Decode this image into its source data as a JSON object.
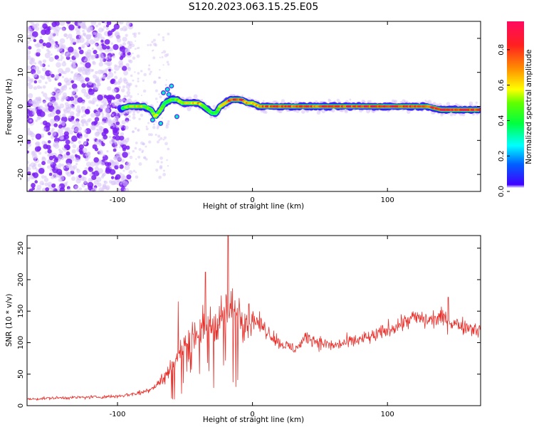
{
  "title": "S120.2023.063.15.25.E05",
  "colors": {
    "line": "#e8302b",
    "axis": "#000000",
    "background": "#ffffff",
    "scatter_low": "#d8c4f8",
    "scatter_high": "#7a1ff2"
  },
  "chart_data": [
    {
      "type": "heatmap",
      "title": "",
      "xlabel": "Height of straight line (km)",
      "ylabel": "Frequency (Hz)",
      "xlim": [
        -167,
        169
      ],
      "ylim": [
        -25,
        25
      ],
      "xticks": [
        "-100",
        "0",
        "100"
      ],
      "xtick_values": [
        -100,
        0,
        100
      ],
      "yticks": [
        "-20",
        "-10",
        "0",
        "10",
        "20"
      ],
      "ytick_values": [
        -20,
        -10,
        0,
        10,
        20
      ],
      "colorbar": {
        "label": "Normalized spectral amplitude",
        "ticks": [
          "0.0",
          "0.2",
          "0.4",
          "0.6",
          "0.8"
        ],
        "tick_values": [
          0.0,
          0.2,
          0.4,
          0.6,
          0.8
        ],
        "range": [
          0.0,
          0.96
        ],
        "colormap": "gist_rainbow"
      },
      "ridge": {
        "x": [
          -100,
          -92,
          -85,
          -80,
          -75,
          -72,
          -68,
          -65,
          -60,
          -56,
          -52,
          -48,
          -44,
          -40,
          -36,
          -33,
          -30,
          -27,
          -24,
          -20,
          -16,
          -12,
          -8,
          -4,
          0,
          5,
          10,
          20,
          30,
          40,
          50,
          60,
          70,
          80,
          90,
          100,
          110,
          120,
          130,
          140,
          150,
          160,
          169
        ],
        "y": [
          -1,
          0,
          0,
          0,
          -1,
          -3,
          -1,
          1,
          2,
          2,
          1,
          1,
          1,
          1,
          0,
          -1,
          -2,
          -2,
          0,
          1,
          2,
          2,
          2,
          1,
          1,
          0,
          0,
          0,
          0,
          0,
          0,
          0,
          0,
          0,
          0,
          0,
          0,
          0,
          0,
          -1,
          -1,
          -1,
          -1
        ],
        "amplitude": [
          0.3,
          0.55,
          0.65,
          0.6,
          0.5,
          0.55,
          0.5,
          0.45,
          0.5,
          0.55,
          0.6,
          0.65,
          0.7,
          0.7,
          0.5,
          0.45,
          0.45,
          0.5,
          0.6,
          0.8,
          0.9,
          0.9,
          0.85,
          0.75,
          0.7,
          0.75,
          0.8,
          0.85,
          0.85,
          0.85,
          0.85,
          0.85,
          0.88,
          0.9,
          0.9,
          0.88,
          0.9,
          0.9,
          0.88,
          0.92,
          0.95,
          0.95,
          0.85
        ]
      },
      "noise_region_x": [
        -167,
        -90
      ]
    },
    {
      "type": "line",
      "title": "",
      "xlabel": "Height of straight line (km)",
      "ylabel": "SNR (10 * v/v)",
      "xlim": [
        -167,
        169
      ],
      "ylim": [
        0,
        270
      ],
      "xticks": [
        "-100",
        "0",
        "100"
      ],
      "xtick_values": [
        -100,
        0,
        100
      ],
      "yticks": [
        "0",
        "50",
        "100",
        "150",
        "200",
        "250"
      ],
      "ytick_values": [
        0,
        50,
        100,
        150,
        200,
        250
      ],
      "x": [
        -167,
        -150,
        -130,
        -110,
        -100,
        -90,
        -80,
        -75,
        -70,
        -65,
        -60,
        -55,
        -50,
        -45,
        -40,
        -35,
        -30,
        -25,
        -20,
        -18,
        -15,
        -10,
        -5,
        0,
        5,
        10,
        15,
        20,
        25,
        30,
        35,
        40,
        50,
        60,
        70,
        80,
        90,
        100,
        110,
        120,
        130,
        140,
        150,
        160,
        169
      ],
      "y": [
        10,
        12,
        13,
        14,
        15,
        18,
        22,
        28,
        35,
        45,
        60,
        80,
        100,
        110,
        120,
        125,
        130,
        140,
        145,
        150,
        150,
        150,
        140,
        140,
        130,
        120,
        110,
        100,
        95,
        90,
        95,
        110,
        100,
        95,
        100,
        105,
        110,
        120,
        130,
        140,
        135,
        140,
        130,
        125,
        120
      ],
      "spikes": [
        {
          "x": -18,
          "y": 270
        },
        {
          "x": -35,
          "y": 212
        },
        {
          "x": -55,
          "y": 165
        },
        {
          "x": 145,
          "y": 172
        }
      ]
    }
  ]
}
